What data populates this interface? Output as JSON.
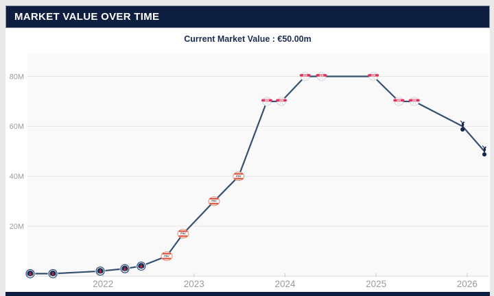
{
  "header": {
    "title": "MARKET VALUE OVER TIME"
  },
  "subtitle": {
    "text": "Current Market Value : €50.00m"
  },
  "chart_data": {
    "type": "line",
    "title": "Market value over time",
    "series_name": "Market value",
    "unit": "€ million",
    "current_value_label": "€50.00m",
    "grid": true,
    "legend": "none",
    "xlim": [
      2021.17,
      2026.235
    ],
    "ylim": [
      0,
      89.2
    ],
    "x_ticks": [
      {
        "value": 2022,
        "label": "2022"
      },
      {
        "value": 2023,
        "label": "2023"
      },
      {
        "value": 2024,
        "label": "2024"
      },
      {
        "value": 2025,
        "label": "2025"
      },
      {
        "value": 2026,
        "label": "2026"
      }
    ],
    "y_ticks": [
      {
        "value": 20,
        "label": "20M"
      },
      {
        "value": 40,
        "label": "40M"
      },
      {
        "value": 60,
        "label": "60M"
      },
      {
        "value": 80,
        "label": "80M"
      }
    ],
    "points": [
      {
        "x": 2021.2,
        "value": 1,
        "club": "psg"
      },
      {
        "x": 2021.45,
        "value": 1,
        "club": "psg"
      },
      {
        "x": 2021.97,
        "value": 2,
        "club": "psg"
      },
      {
        "x": 2022.24,
        "value": 3,
        "club": "psg"
      },
      {
        "x": 2022.42,
        "value": 4,
        "club": "psg"
      },
      {
        "x": 2022.7,
        "value": 8,
        "club": "psv"
      },
      {
        "x": 2022.88,
        "value": 17,
        "club": "psv"
      },
      {
        "x": 2023.22,
        "value": 30,
        "club": "psv"
      },
      {
        "x": 2023.49,
        "value": 40,
        "club": "psv"
      },
      {
        "x": 2023.8,
        "value": 70,
        "club": "rb-leipzig"
      },
      {
        "x": 2023.96,
        "value": 70,
        "club": "rb-leipzig"
      },
      {
        "x": 2024.22,
        "value": 80,
        "club": "rb-leipzig"
      },
      {
        "x": 2024.4,
        "value": 80,
        "club": "rb-leipzig"
      },
      {
        "x": 2024.97,
        "value": 80,
        "club": "rb-leipzig"
      },
      {
        "x": 2025.25,
        "value": 70,
        "club": "rb-leipzig"
      },
      {
        "x": 2025.42,
        "value": 70,
        "club": "rb-leipzig"
      },
      {
        "x": 2025.95,
        "value": 60,
        "club": "tottenham"
      },
      {
        "x": 2026.19,
        "value": 50,
        "club": "tottenham"
      }
    ]
  },
  "colors": {
    "header_bg": "#0d1e41",
    "header_text": "#ffffff",
    "subtitle_text": "#1c2c4f",
    "page_border": "#e9e9e9",
    "plot_bg": "#f9f9f9",
    "grid_line": "#e5e5e5",
    "axis_line": "#dcdcdc",
    "axis_text": "#9b9b9b",
    "series_line": "#35506f",
    "psg_navy": "#16305c",
    "psg_red": "#d0202c",
    "psv_red": "#dd4b37",
    "rb_leipzig_red": "#e0335a",
    "tottenham_navy": "#18264a"
  }
}
